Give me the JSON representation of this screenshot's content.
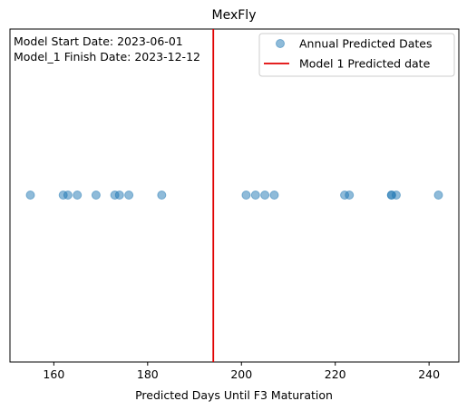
{
  "chart_data": {
    "type": "scatter",
    "title": "MexFly",
    "xlabel": "Predicted Days Until F3 Maturation",
    "ylabel": "",
    "xlim": [
      150.65,
      246.35
    ],
    "x_ticks": [
      160,
      180,
      200,
      220,
      240
    ],
    "y_axis_visible": false,
    "grid": false,
    "legend_position": "upper right",
    "annotations": [
      "Model Start Date: 2023-06-01",
      "Model_1 Finish Date: 2023-12-12"
    ],
    "series": [
      {
        "name": "Annual Predicted Dates",
        "kind": "scatter",
        "color": "#1f77b4",
        "alpha": 0.5,
        "x": [
          155,
          162,
          163,
          165,
          169,
          173,
          174,
          176,
          183,
          201,
          203,
          205,
          207,
          222,
          223,
          232,
          232,
          233,
          242
        ],
        "y": [
          0,
          0,
          0,
          0,
          0,
          0,
          0,
          0,
          0,
          0,
          0,
          0,
          0,
          0,
          0,
          0,
          0,
          0,
          0
        ]
      },
      {
        "name": "Model 1 Predicted date",
        "kind": "vline",
        "color": "#e00000",
        "x": 194
      }
    ]
  }
}
